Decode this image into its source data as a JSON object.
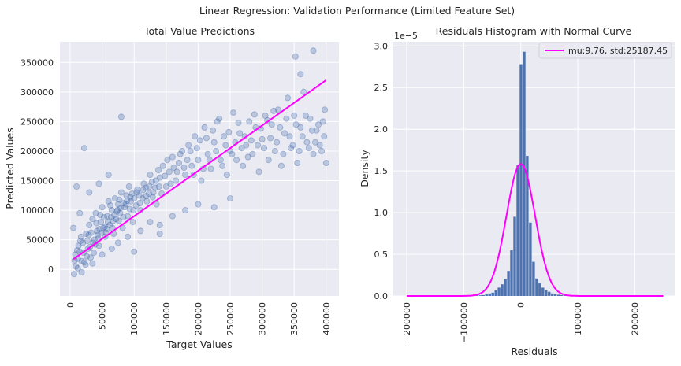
{
  "suptitle": "Linear Regression: Validation Performance (Limited Feature Set)",
  "chart_data": [
    {
      "type": "scatter",
      "title": "Total Value Predictions",
      "xlabel": "Target Values",
      "ylabel": "Predicted Values",
      "xlim": [
        -16000,
        420000
      ],
      "ylim": [
        -45000,
        385000
      ],
      "xticks": [
        0,
        50000,
        100000,
        150000,
        200000,
        250000,
        300000,
        350000,
        400000
      ],
      "yticks": [
        0,
        50000,
        100000,
        150000,
        200000,
        250000,
        300000,
        350000
      ],
      "grid": true,
      "point_color": "#4c72b0",
      "point_alpha": 0.3,
      "fit_line": {
        "x": [
          5000,
          400000
        ],
        "y": [
          17000,
          320000
        ],
        "color": "#ff00ff"
      },
      "points": [
        [
          6000,
          -8000
        ],
        [
          9000,
          5000
        ],
        [
          12000,
          18000
        ],
        [
          15000,
          30000
        ],
        [
          18000,
          -5000
        ],
        [
          20000,
          45000
        ],
        [
          22000,
          12000
        ],
        [
          25000,
          60000
        ],
        [
          28000,
          35000
        ],
        [
          30000,
          75000
        ],
        [
          32000,
          20000
        ],
        [
          35000,
          85000
        ],
        [
          38000,
          50000
        ],
        [
          40000,
          95000
        ],
        [
          42000,
          65000
        ],
        [
          45000,
          40000
        ],
        [
          48000,
          80000
        ],
        [
          50000,
          105000
        ],
        [
          52000,
          70000
        ],
        [
          55000,
          55000
        ],
        [
          58000,
          90000
        ],
        [
          60000,
          115000
        ],
        [
          62000,
          75000
        ],
        [
          65000,
          100000
        ],
        [
          68000,
          60000
        ],
        [
          70000,
          120000
        ],
        [
          72000,
          85000
        ],
        [
          75000,
          110000
        ],
        [
          78000,
          95000
        ],
        [
          80000,
          130000
        ],
        [
          82000,
          70000
        ],
        [
          85000,
          105000
        ],
        [
          88000,
          125000
        ],
        [
          90000,
          90000
        ],
        [
          92000,
          140000
        ],
        [
          95000,
          115000
        ],
        [
          98000,
          80000
        ],
        [
          100000,
          120000
        ],
        [
          105000,
          135000
        ],
        [
          110000,
          100000
        ],
        [
          115000,
          145000
        ],
        [
          120000,
          115000
        ],
        [
          125000,
          160000
        ],
        [
          130000,
          130000
        ],
        [
          135000,
          110000
        ],
        [
          140000,
          155000
        ],
        [
          145000,
          175000
        ],
        [
          150000,
          140000
        ],
        [
          155000,
          165000
        ],
        [
          160000,
          190000
        ],
        [
          165000,
          150000
        ],
        [
          170000,
          180000
        ],
        [
          175000,
          200000
        ],
        [
          180000,
          160000
        ],
        [
          185000,
          210000
        ],
        [
          190000,
          175000
        ],
        [
          195000,
          225000
        ],
        [
          200000,
          185000
        ],
        [
          205000,
          150000
        ],
        [
          210000,
          240000
        ],
        [
          215000,
          195000
        ],
        [
          220000,
          170000
        ],
        [
          225000,
          215000
        ],
        [
          230000,
          250000
        ],
        [
          235000,
          185000
        ],
        [
          240000,
          225000
        ],
        [
          245000,
          160000
        ],
        [
          250000,
          200000
        ],
        [
          255000,
          265000
        ],
        [
          260000,
          185000
        ],
        [
          265000,
          230000
        ],
        [
          270000,
          175000
        ],
        [
          275000,
          210000
        ],
        [
          280000,
          250000
        ],
        [
          285000,
          195000
        ],
        [
          290000,
          240000
        ],
        [
          295000,
          165000
        ],
        [
          300000,
          220000
        ],
        [
          305000,
          260000
        ],
        [
          310000,
          185000
        ],
        [
          315000,
          245000
        ],
        [
          320000,
          200000
        ],
        [
          325000,
          270000
        ],
        [
          330000,
          175000
        ],
        [
          335000,
          230000
        ],
        [
          340000,
          290000
        ],
        [
          345000,
          205000
        ],
        [
          350000,
          260000
        ],
        [
          355000,
          180000
        ],
        [
          360000,
          240000
        ],
        [
          365000,
          300000
        ],
        [
          370000,
          215000
        ],
        [
          375000,
          255000
        ],
        [
          380000,
          195000
        ],
        [
          385000,
          235000
        ],
        [
          390000,
          210000
        ],
        [
          395000,
          250000
        ],
        [
          400000,
          180000
        ],
        [
          398000,
          270000
        ],
        [
          352000,
          360000
        ],
        [
          380000,
          370000
        ],
        [
          360000,
          330000
        ],
        [
          80000,
          258000
        ],
        [
          22000,
          205000
        ],
        [
          10000,
          140000
        ],
        [
          5000,
          70000
        ],
        [
          15000,
          95000
        ],
        [
          30000,
          130000
        ],
        [
          45000,
          145000
        ],
        [
          60000,
          160000
        ],
        [
          35000,
          10000
        ],
        [
          50000,
          25000
        ],
        [
          65000,
          35000
        ],
        [
          75000,
          45000
        ],
        [
          90000,
          55000
        ],
        [
          110000,
          65000
        ],
        [
          125000,
          80000
        ],
        [
          140000,
          75000
        ],
        [
          160000,
          90000
        ],
        [
          180000,
          100000
        ],
        [
          200000,
          110000
        ],
        [
          225000,
          105000
        ],
        [
          250000,
          120000
        ],
        [
          140000,
          60000
        ],
        [
          100000,
          30000
        ],
        [
          8000,
          25000
        ],
        [
          13000,
          40000
        ],
        [
          17000,
          55000
        ],
        [
          24000,
          8000
        ],
        [
          27000,
          48000
        ],
        [
          33000,
          62000
        ],
        [
          37000,
          28000
        ],
        [
          41000,
          78000
        ],
        [
          44000,
          52000
        ],
        [
          47000,
          92000
        ],
        [
          53000,
          88000
        ],
        [
          57000,
          68000
        ],
        [
          63000,
          108000
        ],
        [
          67000,
          82000
        ],
        [
          73000,
          98000
        ],
        [
          77000,
          118000
        ],
        [
          83000,
          88000
        ],
        [
          87000,
          110000
        ],
        [
          93000,
          102000
        ],
        [
          97000,
          128000
        ],
        [
          103000,
          108000
        ],
        [
          108000,
          125000
        ],
        [
          113000,
          120000
        ],
        [
          118000,
          138000
        ],
        [
          123000,
          128000
        ],
        [
          128000,
          148000
        ],
        [
          133000,
          138000
        ],
        [
          138000,
          168000
        ],
        [
          143000,
          128000
        ],
        [
          148000,
          158000
        ],
        [
          152000,
          185000
        ],
        [
          157000,
          145000
        ],
        [
          162000,
          172000
        ],
        [
          167000,
          165000
        ],
        [
          172000,
          195000
        ],
        [
          178000,
          172000
        ],
        [
          183000,
          185000
        ],
        [
          188000,
          200000
        ],
        [
          193000,
          160000
        ],
        [
          198000,
          205000
        ],
        [
          203000,
          218000
        ],
        [
          208000,
          170000
        ],
        [
          213000,
          222000
        ],
        [
          218000,
          185000
        ],
        [
          223000,
          235000
        ],
        [
          228000,
          200000
        ],
        [
          233000,
          255000
        ],
        [
          238000,
          175000
        ],
        [
          243000,
          210000
        ],
        [
          248000,
          232000
        ],
        [
          253000,
          195000
        ],
        [
          258000,
          215000
        ],
        [
          263000,
          248000
        ],
        [
          268000,
          205000
        ],
        [
          273000,
          225000
        ],
        [
          278000,
          190000
        ],
        [
          283000,
          218000
        ],
        [
          288000,
          262000
        ],
        [
          293000,
          210000
        ],
        [
          298000,
          238000
        ],
        [
          303000,
          205000
        ],
        [
          308000,
          252000
        ],
        [
          313000,
          222000
        ],
        [
          318000,
          268000
        ],
        [
          323000,
          215000
        ],
        [
          328000,
          240000
        ],
        [
          333000,
          195000
        ],
        [
          338000,
          255000
        ],
        [
          343000,
          225000
        ],
        [
          348000,
          210000
        ],
        [
          353000,
          245000
        ],
        [
          358000,
          200000
        ],
        [
          363000,
          225000
        ],
        [
          368000,
          260000
        ],
        [
          373000,
          205000
        ],
        [
          378000,
          235000
        ],
        [
          383000,
          215000
        ],
        [
          388000,
          245000
        ],
        [
          393000,
          200000
        ],
        [
          397000,
          225000
        ],
        [
          12000,
          2000
        ],
        [
          18000,
          14000
        ],
        [
          26000,
          22000
        ],
        [
          31000,
          38000
        ],
        [
          39000,
          42000
        ],
        [
          43000,
          58000
        ],
        [
          49000,
          62000
        ],
        [
          54000,
          72000
        ],
        [
          59000,
          80000
        ],
        [
          64000,
          88000
        ],
        [
          69000,
          92000
        ],
        [
          74000,
          100000
        ],
        [
          79000,
          104000
        ],
        [
          84000,
          112000
        ],
        [
          89000,
          116000
        ],
        [
          94000,
          122000
        ],
        [
          99000,
          100000
        ],
        [
          104000,
          130000
        ],
        [
          109000,
          112000
        ],
        [
          114000,
          134000
        ],
        [
          119000,
          124000
        ],
        [
          124000,
          140000
        ],
        [
          129000,
          122000
        ],
        [
          134000,
          150000
        ],
        [
          139000,
          140000
        ],
        [
          7000,
          15000
        ],
        [
          11000,
          32000
        ],
        [
          16000,
          48000
        ],
        [
          21000,
          28000
        ],
        [
          29000,
          58000
        ],
        [
          36000,
          45000
        ],
        [
          46000,
          68000
        ],
        [
          56000,
          62000
        ],
        [
          66000,
          70000
        ],
        [
          76000,
          82000
        ]
      ]
    },
    {
      "type": "bar",
      "subtype": "histogram",
      "title": "Residuals Histogram with Normal Curve",
      "xlabel": "Residuals",
      "ylabel": "Density",
      "offset_text": "1e−5",
      "xlim": [
        -225000,
        270000
      ],
      "ylim": [
        0,
        3.05
      ],
      "xticks": [
        -200000,
        -100000,
        0,
        100000,
        200000
      ],
      "xtick_labels": [
        "−200000",
        "−100000",
        "0",
        "100000",
        "200000"
      ],
      "yticks": [
        0.0,
        0.5,
        1.0,
        1.5,
        2.0,
        2.5,
        3.0
      ],
      "ytick_labels": [
        "0.0",
        "0.5",
        "1.0",
        "1.5",
        "2.0",
        "2.5",
        "3.0"
      ],
      "grid": true,
      "bar_color": "#4c72b0",
      "bin_width": 5500,
      "bins": [
        [
          -90000,
          0.003
        ],
        [
          -84500,
          0.003
        ],
        [
          -79000,
          0.005
        ],
        [
          -73500,
          0.008
        ],
        [
          -68000,
          0.01
        ],
        [
          -62500,
          0.02
        ],
        [
          -57000,
          0.03
        ],
        [
          -51500,
          0.04
        ],
        [
          -46000,
          0.07
        ],
        [
          -40500,
          0.1
        ],
        [
          -35000,
          0.14
        ],
        [
          -29500,
          0.2
        ],
        [
          -24000,
          0.3
        ],
        [
          -18500,
          0.55
        ],
        [
          -13000,
          0.95
        ],
        [
          -7500,
          1.57
        ],
        [
          -2000,
          2.78
        ],
        [
          3500,
          2.93
        ],
        [
          9000,
          1.68
        ],
        [
          14500,
          0.88
        ],
        [
          20000,
          0.41
        ],
        [
          25500,
          0.21
        ],
        [
          31000,
          0.15
        ],
        [
          36500,
          0.1
        ],
        [
          42000,
          0.07
        ],
        [
          47500,
          0.05
        ],
        [
          53000,
          0.03
        ],
        [
          58500,
          0.02
        ],
        [
          64000,
          0.015
        ],
        [
          69500,
          0.01
        ],
        [
          75000,
          0.008
        ],
        [
          80500,
          0.005
        ],
        [
          86000,
          0.004
        ],
        [
          91500,
          0.003
        ],
        [
          97000,
          0.003
        ],
        [
          102500,
          0.002
        ],
        [
          108000,
          0.002
        ],
        [
          113500,
          0.001
        ]
      ],
      "normal_curve": {
        "mu": 9.76,
        "std": 25187.45,
        "color": "#ff00ff"
      },
      "legend": {
        "label": "mu:9.76, std:25187.45",
        "position": "top-right"
      }
    }
  ]
}
